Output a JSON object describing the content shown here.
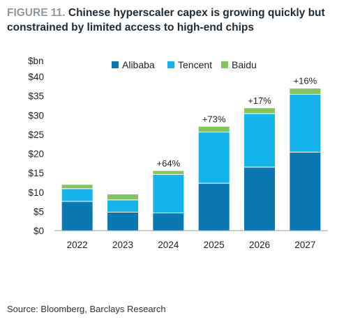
{
  "figure": {
    "number": "FIGURE 11.",
    "title": "Chinese hyperscaler capex is growing quickly but constrained by limited access to high-end chips",
    "source": "Source: Bloomberg, Barclays Research"
  },
  "colors": {
    "Alibaba": "#0b78b3",
    "Tencent": "#14b4ee",
    "Baidu": "#84c45a"
  },
  "chart_data": {
    "type": "bar",
    "stacked": true,
    "categories": [
      "2022",
      "2023",
      "2024",
      "2025",
      "2026",
      "2027"
    ],
    "series": [
      {
        "name": "Alibaba",
        "values": [
          7.6,
          4.8,
          4.6,
          12.3,
          16.5,
          20.4
        ]
      },
      {
        "name": "Tencent",
        "values": [
          3.3,
          3.2,
          10.0,
          13.3,
          13.9,
          15.0
        ]
      },
      {
        "name": "Baidu",
        "values": [
          1.1,
          1.5,
          1.0,
          1.5,
          1.5,
          1.6
        ]
      }
    ],
    "annotations": [
      "",
      "",
      "+64%",
      "+73%",
      "+17%",
      "+16%"
    ],
    "ylabel": "$bn",
    "ylim": [
      0,
      40
    ],
    "yticks": [
      0,
      5,
      10,
      15,
      20,
      25,
      30,
      35,
      40
    ],
    "ytick_labels": [
      "$0",
      "$5",
      "$10",
      "$15",
      "$20",
      "$25",
      "$30",
      "$35",
      "$40"
    ],
    "grid": false,
    "legend": "top"
  }
}
